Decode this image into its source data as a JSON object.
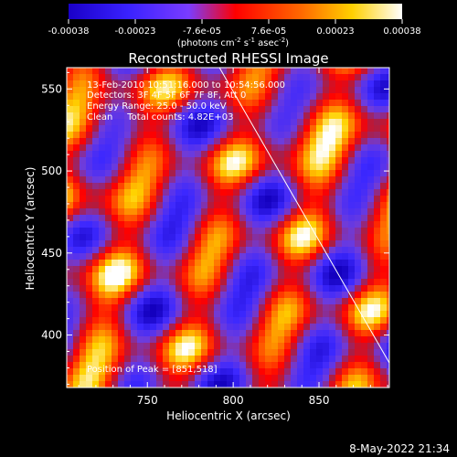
{
  "colorbar": {
    "tick_labels": [
      "-0.00038",
      "-0.00023",
      "-7.6e-05",
      "7.6e-05",
      "0.00023",
      "0.00038"
    ],
    "units": "(photons cm",
    "units_exp1": "-2",
    "units_mid": " s",
    "units_exp2": "-1",
    "units_end": " asec",
    "units_exp3": "-2",
    "units_close": ")",
    "range": [
      -0.00038,
      0.00038
    ]
  },
  "chart_data": {
    "type": "heatmap",
    "title": "Reconstructed RHESSI Image",
    "xlabel": "Heliocentric X (arcsec)",
    "ylabel": "Heliocentric Y (arcsec)",
    "xlim": [
      703,
      891
    ],
    "ylim": [
      368,
      563
    ],
    "x_ticks": [
      750,
      800,
      850
    ],
    "y_ticks": [
      400,
      450,
      500,
      550
    ],
    "annotations": {
      "time": "13-Feb-2010 10:51:16.000 to 10:54:56.000",
      "detectors": "Detectors: 3F 4F 5F 6F 7F 8F, Att 0",
      "energy": "Energy Range: 25.0 - 50.0 keV",
      "clean": "Clean     Total counts: 4.82E+03",
      "peak": "Position of Peak = [851,518]"
    },
    "limb_line": [
      [
        792,
        563
      ],
      [
        891,
        383
      ]
    ],
    "peak_position": [
      851,
      518
    ]
  },
  "footer": {
    "timestamp": "8-May-2022 21:34"
  }
}
